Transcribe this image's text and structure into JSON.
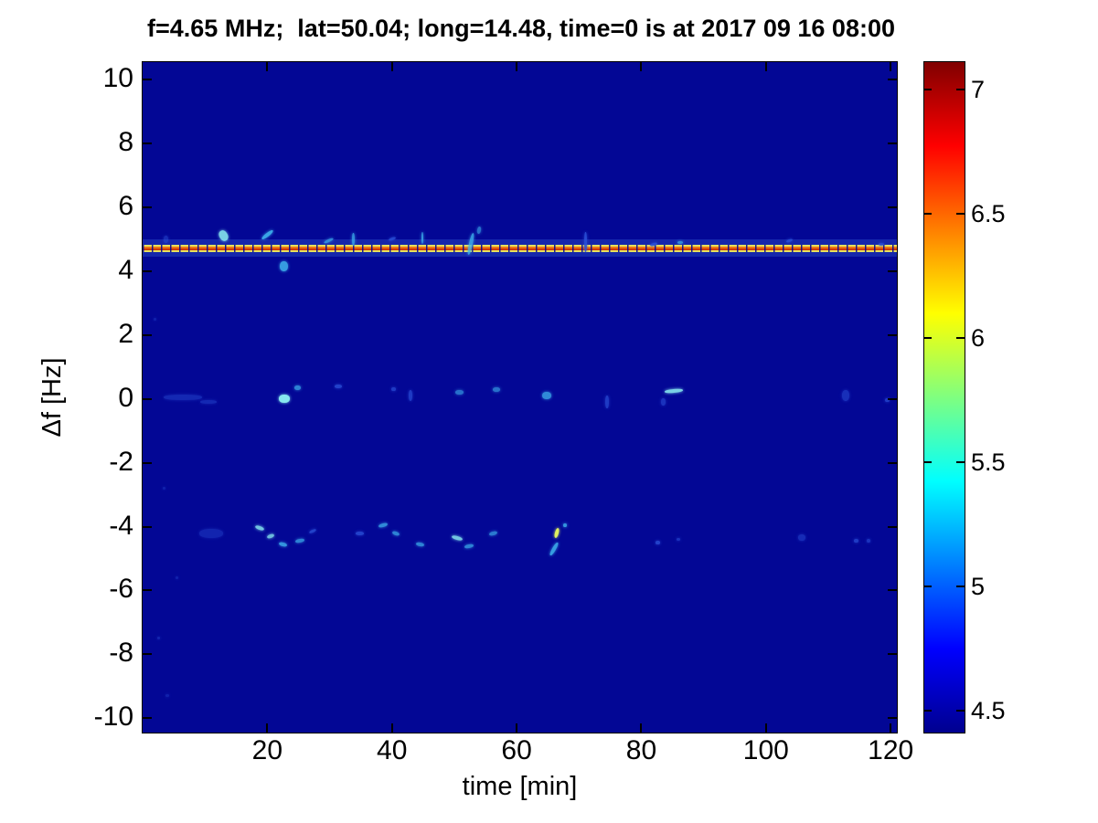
{
  "chart_data": {
    "type": "heatmap",
    "title": "f=4.65 MHz;  lat=50.04; long=14.48, time=0 is at 2017 09 16 08:00",
    "xlabel": "time [min]",
    "ylabel": "Δf [Hz]",
    "xlim": [
      0,
      121
    ],
    "ylim": [
      -10.45,
      10.55
    ],
    "x_ticks": [
      20,
      40,
      60,
      80,
      100,
      120
    ],
    "y_ticks": [
      10,
      8,
      6,
      4,
      2,
      0,
      -2,
      -4,
      -6,
      -8,
      -10
    ],
    "grid": false,
    "legend": "colorbar-right",
    "colormap": "jet",
    "colorbar": {
      "range": [
        4.41,
        7.11
      ],
      "ticks": [
        7,
        6.5,
        6,
        5.5,
        5,
        4.5
      ],
      "gradient_stops": [
        {
          "pos": 0.0,
          "color": "#00008F"
        },
        {
          "pos": 0.125,
          "color": "#0000FF"
        },
        {
          "pos": 0.375,
          "color": "#00FFFF"
        },
        {
          "pos": 0.625,
          "color": "#FFFF00"
        },
        {
          "pos": 0.875,
          "color": "#FF0000"
        },
        {
          "pos": 1.0,
          "color": "#800000"
        }
      ]
    },
    "background_value": 4.45,
    "background_color": "#030795",
    "carrier_line": {
      "delta_f_hz": 4.71,
      "style": "dashed bright segments (yellow edges, red-orange core) over faint lighter-blue band, full time span",
      "colors": {
        "edge": "#e6e05c",
        "core_orange": "#ef7612",
        "core_red": "#cf3a08",
        "halo": "rgba(70,120,230,0.28)"
      }
    },
    "feature_colors": {
      "b": "#8ef4f4",
      "m": "#3fb6ef",
      "f": "#2a50d8",
      "y": "#e0f060"
    },
    "feature_format": [
      "time_min",
      "delta_f_hz",
      "width_px",
      "height_px",
      "color_key",
      "opacity",
      "rotation_deg"
    ],
    "features": [
      [
        3.7,
        5.0,
        5,
        8,
        "f",
        0.5,
        0
      ],
      [
        13.0,
        5.1,
        9,
        12,
        "b",
        0.85,
        -30
      ],
      [
        20.0,
        5.15,
        15,
        4,
        "m",
        0.9,
        -38
      ],
      [
        22.6,
        4.15,
        9,
        11,
        "m",
        0.85,
        0
      ],
      [
        29.8,
        4.95,
        11,
        3,
        "m",
        0.7,
        -25
      ],
      [
        33.8,
        5.0,
        3,
        14,
        "m",
        0.75,
        0
      ],
      [
        40.0,
        5.0,
        8,
        3,
        "f",
        0.85,
        -20
      ],
      [
        44.9,
        5.05,
        2,
        13,
        "m",
        0.8,
        0
      ],
      [
        52.6,
        4.85,
        4,
        24,
        "m",
        0.8,
        12
      ],
      [
        54.0,
        5.3,
        4,
        8,
        "m",
        0.6,
        10
      ],
      [
        71.0,
        4.9,
        3,
        22,
        "f",
        0.9,
        0
      ],
      [
        82.0,
        4.85,
        8,
        3,
        "f",
        0.9,
        -15
      ],
      [
        86.3,
        4.9,
        6,
        3,
        "m",
        0.7,
        0
      ],
      [
        103.8,
        4.95,
        7,
        3,
        "f",
        0.85,
        -20
      ],
      [
        118.5,
        4.85,
        6,
        3,
        "f",
        0.8,
        0
      ],
      [
        6.5,
        0.05,
        42,
        6,
        "f",
        0.45,
        0
      ],
      [
        10.5,
        -0.1,
        18,
        4,
        "f",
        0.45,
        0
      ],
      [
        22.8,
        0.0,
        12,
        9,
        "b",
        0.95,
        0
      ],
      [
        24.8,
        0.35,
        7,
        5,
        "m",
        0.7,
        0
      ],
      [
        31.4,
        0.4,
        8,
        4,
        "f",
        0.8,
        0
      ],
      [
        40.2,
        0.3,
        5,
        4,
        "f",
        0.7,
        0
      ],
      [
        43.0,
        0.1,
        4,
        12,
        "f",
        0.7,
        0
      ],
      [
        50.8,
        0.2,
        9,
        5,
        "m",
        0.6,
        0
      ],
      [
        56.8,
        0.3,
        8,
        5,
        "m",
        0.6,
        0
      ],
      [
        64.8,
        0.1,
        10,
        8,
        "m",
        0.75,
        0
      ],
      [
        74.5,
        -0.1,
        4,
        14,
        "f",
        0.7,
        0
      ],
      [
        85.2,
        0.25,
        20,
        4,
        "b",
        0.85,
        -5
      ],
      [
        83.5,
        -0.1,
        5,
        8,
        "f",
        0.6,
        0
      ],
      [
        112.8,
        0.1,
        8,
        12,
        "f",
        0.55,
        0
      ],
      [
        119.5,
        -0.05,
        5,
        4,
        "f",
        0.7,
        0
      ],
      [
        11.0,
        -4.2,
        26,
        10,
        "f",
        0.4,
        0
      ],
      [
        18.8,
        -4.05,
        10,
        4,
        "b",
        0.8,
        20
      ],
      [
        20.6,
        -4.3,
        8,
        4,
        "b",
        0.75,
        -20
      ],
      [
        22.5,
        -4.55,
        9,
        4,
        "m",
        0.8,
        15
      ],
      [
        25.2,
        -4.45,
        10,
        4,
        "m",
        0.7,
        -10
      ],
      [
        27.3,
        -4.15,
        8,
        3,
        "f",
        0.8,
        -25
      ],
      [
        34.8,
        -4.2,
        9,
        4,
        "f",
        0.8,
        0
      ],
      [
        38.5,
        -3.95,
        10,
        4,
        "m",
        0.75,
        -15
      ],
      [
        40.6,
        -4.2,
        8,
        4,
        "m",
        0.7,
        20
      ],
      [
        44.5,
        -4.55,
        9,
        4,
        "m",
        0.7,
        10
      ],
      [
        50.5,
        -4.35,
        12,
        4,
        "b",
        0.8,
        15
      ],
      [
        52.3,
        -4.6,
        10,
        4,
        "m",
        0.7,
        -10
      ],
      [
        56.2,
        -4.2,
        9,
        4,
        "m",
        0.65,
        -15
      ],
      [
        66.0,
        -4.7,
        4,
        16,
        "m",
        0.85,
        30
      ],
      [
        66.4,
        -4.2,
        4,
        11,
        "y",
        1,
        15
      ],
      [
        67.8,
        -3.95,
        4,
        4,
        "m",
        0.8,
        0
      ],
      [
        82.7,
        -4.5,
        5,
        4,
        "f",
        0.8,
        0
      ],
      [
        86.0,
        -4.4,
        4,
        3,
        "f",
        0.6,
        0
      ],
      [
        105.8,
        -4.35,
        8,
        7,
        "f",
        0.5,
        0
      ],
      [
        114.5,
        -4.45,
        5,
        4,
        "f",
        0.7,
        0
      ],
      [
        116.5,
        -4.45,
        4,
        4,
        "f",
        0.6,
        0
      ],
      [
        2.5,
        -7.5,
        3,
        3,
        "f",
        0.4,
        0
      ],
      [
        3.5,
        -2.8,
        3,
        3,
        "f",
        0.35,
        0
      ],
      [
        2.0,
        2.5,
        3,
        3,
        "f",
        0.35,
        0
      ],
      [
        4.0,
        -9.3,
        4,
        3,
        "f",
        0.35,
        0
      ],
      [
        5.5,
        -5.6,
        3,
        3,
        "f",
        0.35,
        0
      ]
    ]
  }
}
